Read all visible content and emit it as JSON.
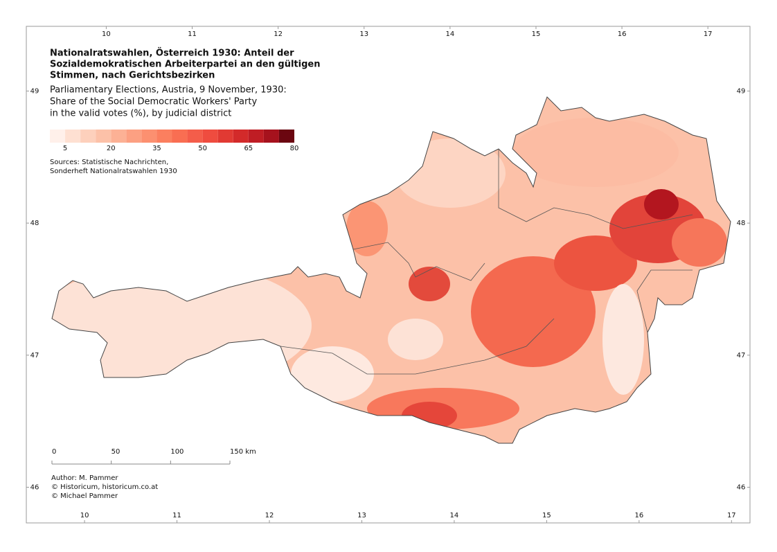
{
  "map": {
    "title_lines": [
      "Nationalratswahlen, Österreich 1930: Anteil der",
      "Sozialdemokratischen Arbeiterpartei an den gültigen",
      "Stimmen, nach Gerichtsbezirken"
    ],
    "subtitle_lines": [
      "Parliamentary Elections, Austria, 9 November, 1930:",
      "Share of the Social Democratic Workers' Party",
      "in the valid votes (%), by judicial district"
    ],
    "legend": {
      "lim": [
        0,
        80
      ],
      "ticks": [
        5,
        20,
        35,
        50,
        65,
        80
      ],
      "colors": [
        "#fff0ea",
        "#fee0d2",
        "#fdd0bc",
        "#fcc1a8",
        "#fcb195",
        "#fca082",
        "#fc9070",
        "#fb7f5f",
        "#f96e52",
        "#f45d4a",
        "#ef4c3f",
        "#e13a33",
        "#d32a2a",
        "#bf1d24",
        "#a6121d",
        "#6b0610"
      ]
    },
    "sources": [
      "Sources: Statistische Nachrichten,",
      "Sonderheft Nationalratswahlen 1930"
    ],
    "scale_bar": {
      "lim": [
        0,
        150
      ],
      "ticks": [
        0,
        50,
        100,
        {
          "value": 150,
          "label": "150 km"
        }
      ]
    },
    "author": [
      "Author: M. Pammer",
      "© Historicum, historicum.co.at",
      "© Michael Pammer"
    ],
    "top_lon": {
      "lim": [
        9.07,
        17.49
      ],
      "ticks": [
        10,
        11,
        12,
        13,
        14,
        15,
        16,
        17
      ]
    },
    "bottom_lon": {
      "lim": [
        9.37,
        17.2
      ],
      "ticks": [
        10,
        11,
        12,
        13,
        14,
        15,
        16,
        17
      ]
    },
    "lat": {
      "lim": [
        45.73,
        49.49
      ],
      "ticks": [
        46,
        47,
        48,
        49
      ]
    }
  }
}
